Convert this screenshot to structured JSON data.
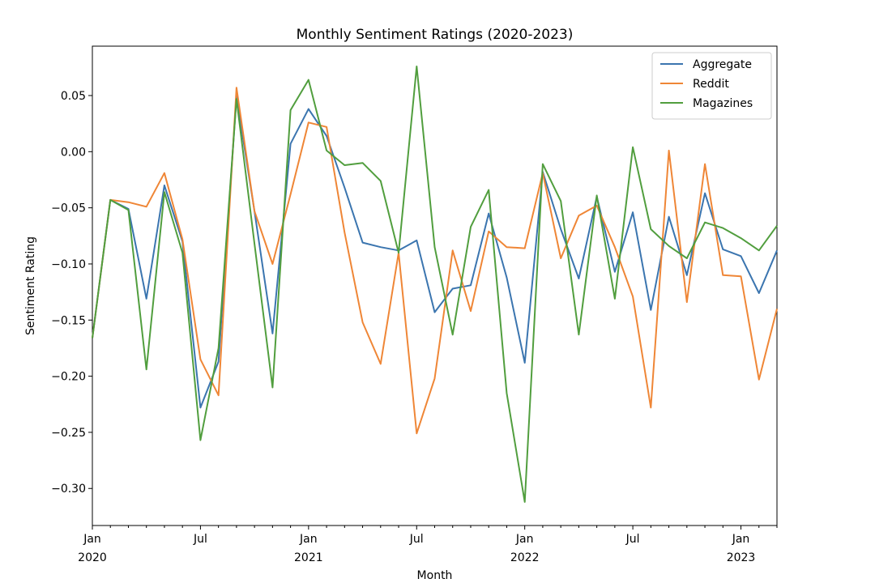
{
  "chart_data": {
    "type": "line",
    "title": "Monthly Sentiment Ratings (2020-2023)",
    "xlabel": "Month",
    "ylabel": "Sentiment Rating",
    "x": [
      "2020-01",
      "2020-02",
      "2020-03",
      "2020-04",
      "2020-05",
      "2020-06",
      "2020-07",
      "2020-08",
      "2020-09",
      "2020-10",
      "2020-11",
      "2020-12",
      "2021-01",
      "2021-02",
      "2021-03",
      "2021-04",
      "2021-05",
      "2021-06",
      "2021-07",
      "2021-08",
      "2021-09",
      "2021-10",
      "2021-11",
      "2021-12",
      "2022-01",
      "2022-02",
      "2022-03",
      "2022-04",
      "2022-05",
      "2022-06",
      "2022-07",
      "2022-08",
      "2022-09",
      "2022-10",
      "2022-11",
      "2022-12",
      "2023-01",
      "2023-02",
      "2023-03"
    ],
    "ylim": [
      -0.333,
      0.094
    ],
    "yticks": [
      0.05,
      0.0,
      -0.05,
      -0.1,
      -0.15,
      -0.2,
      -0.25,
      -0.3
    ],
    "ytick_labels": [
      "0.05",
      "0.00",
      "−0.05",
      "−0.10",
      "−0.15",
      "−0.20",
      "−0.25",
      "−0.30"
    ],
    "xticks": [
      {
        "index": 0,
        "label": "Jan",
        "sublabel": "2020"
      },
      {
        "index": 6,
        "label": "Jul",
        "sublabel": ""
      },
      {
        "index": 12,
        "label": "Jan",
        "sublabel": "2021"
      },
      {
        "index": 18,
        "label": "Jul",
        "sublabel": ""
      },
      {
        "index": 24,
        "label": "Jan",
        "sublabel": "2022"
      },
      {
        "index": 30,
        "label": "Jul",
        "sublabel": ""
      },
      {
        "index": 36,
        "label": "Jan",
        "sublabel": "2023"
      }
    ],
    "legend_position": "top-right",
    "series": [
      {
        "name": "Aggregate",
        "color": "#3b75af",
        "values": [
          -0.166,
          -0.043,
          -0.051,
          -0.131,
          -0.03,
          -0.08,
          -0.228,
          -0.187,
          0.049,
          -0.053,
          -0.162,
          0.007,
          0.038,
          0.014,
          -0.032,
          -0.081,
          -0.085,
          -0.088,
          -0.079,
          -0.143,
          -0.122,
          -0.119,
          -0.055,
          -0.112,
          -0.188,
          -0.018,
          -0.069,
          -0.113,
          -0.04,
          -0.107,
          -0.054,
          -0.141,
          -0.058,
          -0.11,
          -0.037,
          -0.087,
          -0.093,
          -0.126,
          -0.088
        ]
      },
      {
        "name": "Reddit",
        "color": "#ef8636",
        "values": [
          -0.166,
          -0.043,
          -0.045,
          -0.049,
          -0.019,
          -0.078,
          -0.185,
          -0.217,
          0.057,
          -0.053,
          -0.1,
          -0.038,
          0.026,
          0.022,
          -0.072,
          -0.152,
          -0.189,
          -0.09,
          -0.251,
          -0.202,
          -0.088,
          -0.142,
          -0.071,
          -0.085,
          -0.086,
          -0.019,
          -0.095,
          -0.057,
          -0.048,
          -0.085,
          -0.129,
          -0.228,
          0.001,
          -0.134,
          -0.011,
          -0.11,
          -0.111,
          -0.203,
          -0.14
        ]
      },
      {
        "name": "Magazines",
        "color": "#519e3e",
        "values": [
          -0.166,
          -0.043,
          -0.052,
          -0.194,
          -0.036,
          -0.09,
          -0.257,
          -0.175,
          0.047,
          -0.082,
          -0.21,
          0.037,
          0.064,
          0.001,
          -0.012,
          -0.01,
          -0.026,
          -0.09,
          0.076,
          -0.085,
          -0.163,
          -0.067,
          -0.034,
          -0.215,
          -0.312,
          -0.011,
          -0.044,
          -0.163,
          -0.039,
          -0.131,
          0.004,
          -0.069,
          -0.084,
          -0.095,
          -0.063,
          -0.068,
          -0.077,
          -0.088,
          -0.066
        ]
      }
    ]
  }
}
